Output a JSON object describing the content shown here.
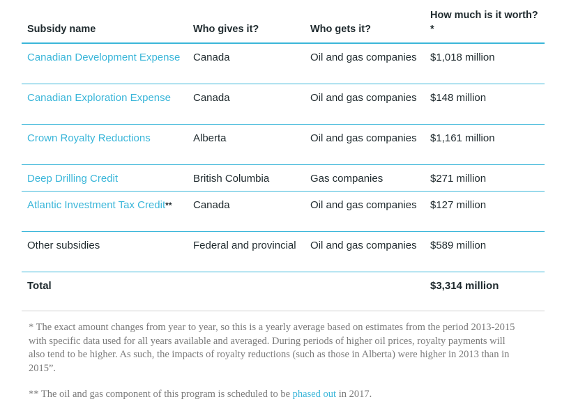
{
  "table": {
    "headers": [
      "Subsidy name",
      "Who gives it?",
      "Who gets it?",
      "How much is it worth?*"
    ],
    "rows": [
      {
        "name": "Canadian Development Expense",
        "name_suffix": "",
        "giver": "Canada",
        "recipient": "Oil and gas companies",
        "amount": "$1,018 million"
      },
      {
        "name": "Canadian Exploration Expense",
        "name_suffix": "",
        "giver": "Canada",
        "recipient": "Oil and gas companies",
        "amount": "$148 million"
      },
      {
        "name": "Crown Royalty Reductions",
        "name_suffix": "",
        "giver": "Alberta",
        "recipient": "Oil and gas companies",
        "amount": "$1,161 million"
      },
      {
        "name": "Deep Drilling Credit",
        "name_suffix": "",
        "giver": "British Columbia",
        "recipient": "Gas companies",
        "amount": "$271 million"
      },
      {
        "name": "Atlantic Investment Tax Credit",
        "name_suffix": "**",
        "giver": "Canada",
        "recipient": "Oil and gas companies",
        "amount": "$127 million"
      },
      {
        "name": "Other subsidies",
        "name_suffix": "",
        "giver": "Federal and provincial",
        "recipient": "Oil and gas companies",
        "amount": "$589 million"
      }
    ],
    "total": {
      "label": "Total",
      "amount": "$3,314 million"
    }
  },
  "notes": {
    "note1": "* The exact amount changes from year to year, so this is a yearly average based on estimates from the period 2013-2015 with specific data used for all years available and averaged. During periods of higher oil prices, royalty payments will also tend to be higher. As such, the impacts of royalty reductions (such as those in Alberta) were higher in 2013 than in 2015”.",
    "note2_prefix": "** The oil and gas component of this program is scheduled to be ",
    "note2_link": "phased out",
    "note2_suffix": " in 2017."
  },
  "colors": {
    "accent": "#3ab6d9",
    "text": "#1f2a2e",
    "note_text": "#7a7a7a",
    "divider": "#cfcfcf"
  }
}
